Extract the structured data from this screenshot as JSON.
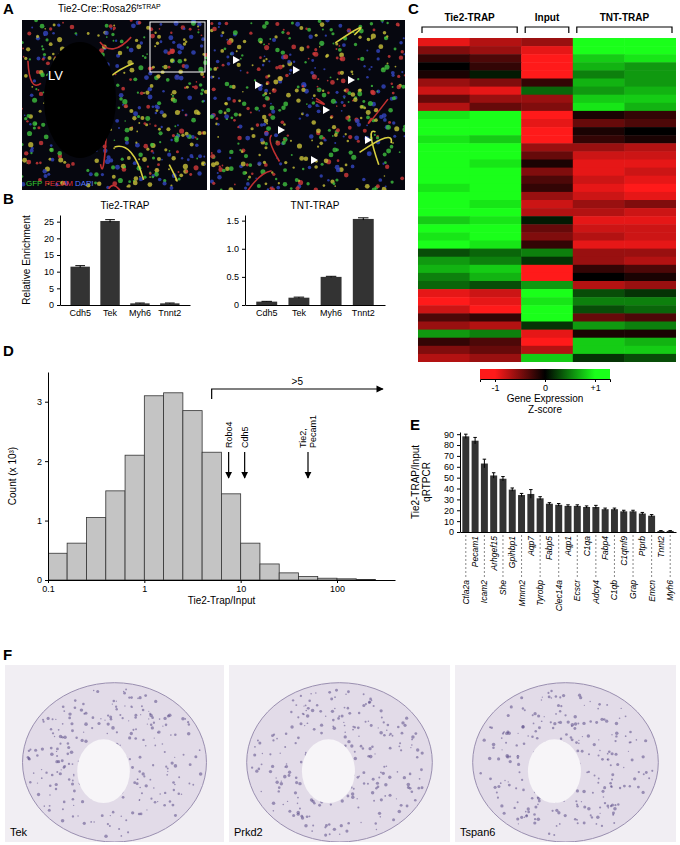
{
  "chart_data": [
    {
      "panel": "B",
      "type": "bar",
      "title": "Tie2-TRAP",
      "y_label": "Relative Enrichment",
      "categories": [
        "Cdh5",
        "Tek",
        "Myh6",
        "Tnnt2"
      ],
      "values": [
        11.5,
        25.2,
        0.5,
        0.5
      ],
      "errors": [
        0.3,
        0.4,
        0.1,
        0.1
      ],
      "ylim": [
        0,
        27
      ],
      "yticks": [
        0,
        5,
        10,
        15,
        20,
        25
      ],
      "color": "#333333"
    },
    {
      "type": "bar",
      "title": "TNT-TRAP",
      "categories": [
        "Cdh5",
        "Tek",
        "Myh6",
        "Tnnt2"
      ],
      "values": [
        0.06,
        0.13,
        0.5,
        1.53
      ],
      "errors": [
        0.005,
        0.01,
        0.01,
        0.02
      ],
      "ylim": [
        0,
        1.6
      ],
      "yticks": [
        0,
        0.5,
        {
          "value": 1,
          "label": "1.0"
        },
        1.5
      ],
      "color": "#333333"
    },
    {
      "panel": "C",
      "type": "heatmap",
      "column_groups": [
        {
          "label": "Tie2-TRAP",
          "columns": 2
        },
        {
          "label": "Input",
          "columns": 1
        },
        {
          "label": "TNT-TRAP",
          "columns": 2
        }
      ],
      "cells": [
        [
          -0.9,
          -0.7,
          -0.6,
          1.1,
          1.0
        ],
        [
          -0.5,
          -0.6,
          -0.9,
          1.0,
          1.1
        ],
        [
          -0.2,
          -0.3,
          -1.1,
          0.8,
          0.9
        ],
        [
          0.0,
          -0.2,
          -1.0,
          0.7,
          0.6
        ],
        [
          -0.1,
          0.1,
          -1.0,
          0.5,
          0.6
        ],
        [
          -0.6,
          -0.5,
          -0.2,
          0.7,
          0.6
        ],
        [
          -0.8,
          -0.9,
          0.4,
          0.6,
          0.7
        ],
        [
          -0.4,
          -0.6,
          -0.6,
          0.8,
          0.8
        ],
        [
          -0.7,
          -0.4,
          -0.5,
          0.9,
          0.7
        ],
        [
          0.9,
          1.0,
          -1.2,
          -0.1,
          -0.2
        ],
        [
          1.1,
          1.0,
          -0.9,
          -0.4,
          -0.3
        ],
        [
          1.0,
          1.1,
          -1.3,
          -0.1,
          0.0
        ],
        [
          0.9,
          0.8,
          -1.2,
          -0.2,
          -0.1
        ],
        [
          1.0,
          1.1,
          -0.6,
          -0.6,
          -0.7
        ],
        [
          1.1,
          1.0,
          -0.4,
          -0.8,
          -0.8
        ],
        [
          1.0,
          0.9,
          -0.1,
          -0.9,
          -0.9
        ],
        [
          1.2,
          1.1,
          -0.5,
          -0.9,
          -0.8
        ],
        [
          1.0,
          1.0,
          -0.3,
          -0.8,
          -0.9
        ],
        [
          0.9,
          1.1,
          -0.2,
          -0.9,
          -1.0
        ],
        [
          1.1,
          1.2,
          -0.6,
          -0.8,
          -0.9
        ],
        [
          1.0,
          0.9,
          -0.8,
          -0.6,
          -0.5
        ],
        [
          1.2,
          1.0,
          -0.7,
          -0.7,
          -0.8
        ],
        [
          0.8,
          0.9,
          0.1,
          -0.9,
          -0.9
        ],
        [
          1.0,
          1.0,
          -0.4,
          -0.8,
          -0.8
        ],
        [
          0.9,
          1.1,
          -0.5,
          -0.7,
          -0.8
        ],
        [
          1.1,
          0.9,
          -0.2,
          -0.9,
          -0.9
        ],
        [
          0.3,
          0.4,
          0.5,
          -0.6,
          -0.6
        ],
        [
          0.6,
          0.5,
          0.2,
          -0.6,
          -0.7
        ],
        [
          0.7,
          0.8,
          -1.0,
          -0.2,
          -0.3
        ],
        [
          0.5,
          0.7,
          -1.1,
          0.0,
          -0.1
        ],
        [
          0.4,
          0.3,
          0.6,
          -0.7,
          -0.6
        ],
        [
          -0.9,
          -0.8,
          1.2,
          0.3,
          0.2
        ],
        [
          -1.0,
          -0.9,
          0.9,
          0.5,
          0.5
        ],
        [
          -0.8,
          -1.0,
          1.1,
          0.3,
          0.4
        ],
        [
          -0.3,
          -0.2,
          1.2,
          -0.4,
          -0.3
        ],
        [
          -0.6,
          -0.7,
          0.2,
          0.6,
          0.5
        ],
        [
          0.6,
          0.5,
          -0.9,
          -0.1,
          -0.1
        ],
        [
          -0.2,
          -0.3,
          -1.0,
          0.8,
          0.7
        ],
        [
          -0.5,
          -0.4,
          -0.7,
          0.8,
          0.8
        ],
        [
          -0.7,
          -0.6,
          0.8,
          0.2,
          0.3
        ]
      ],
      "colors": [
        "#ff1a1a",
        "#000000",
        "#1aff1a"
      ],
      "colorbar": {
        "title": [
          "Gene Expression",
          "Z-score"
        ],
        "range": [
          -1.3,
          1.3
        ],
        "ticks": [
          -1,
          0,
          {
            "value": 1,
            "label": "+1"
          }
        ]
      }
    },
    {
      "panel": "D",
      "type": "histogram",
      "x_label": "Tie2-Trap/Input",
      "y_label": "Count (x 10³)",
      "bins": [
        0.1,
        0.158,
        0.251,
        0.398,
        0.631,
        1,
        1.585,
        2.512,
        3.981,
        6.31,
        10,
        15.85,
        25.12,
        39.81,
        63.1,
        100,
        158.5,
        251.2
      ],
      "counts": [
        0.45,
        0.62,
        1.05,
        1.5,
        2.1,
        3.1,
        3.15,
        2.85,
        2.15,
        1.45,
        0.62,
        0.27,
        0.12,
        0.06,
        0.03,
        0.02,
        0.01
      ],
      "log": "x",
      "xlim": [
        0.1,
        400
      ],
      "xticks": [
        0.1,
        1,
        10,
        100
      ],
      "ylim": [
        0,
        3.5
      ],
      "yticks": [
        0,
        1,
        2,
        3
      ],
      "color": "#c4c4c4",
      "annotations": [
        {
          "text": ">5",
          "x": 5,
          "x_end": 300
        },
        {
          "text": "Robo4",
          "x": 7.5
        },
        {
          "text": "Cdh5",
          "x": 11
        },
        {
          "text": [
            "Tie2,",
            "Pecam1"
          ],
          "x": 50
        }
      ]
    },
    {
      "panel": "E",
      "type": "bar",
      "y_label": [
        "Tie2-TRAP/Input",
        "qRTPCR"
      ],
      "categories": [
        "Ctla2a",
        "Pecam1",
        "Icam2",
        "Arhgef15",
        "She",
        "Gpihbp1",
        "Mmrn2",
        "Aqp7",
        "Tyrobp",
        "Fabp5",
        "Clec14a",
        "Aqp1",
        "Ecscr",
        "C1qa",
        "Adcy4",
        "Fabp4",
        "C1qb",
        "C1qtnf9",
        "Grap",
        "Ptprb",
        "Emcn",
        "Tnnt2",
        "Myh6"
      ],
      "values": [
        88,
        84,
        63,
        52,
        49,
        39,
        34,
        35,
        31,
        26,
        25,
        24,
        24,
        23,
        23,
        21,
        21,
        19,
        19,
        17,
        15,
        1,
        1
      ],
      "errors": [
        2,
        3,
        4,
        2.5,
        2,
        1.5,
        1.5,
        4,
        1.5,
        1,
        1.2,
        1,
        1,
        1,
        1.5,
        1,
        1,
        1,
        1,
        1,
        1,
        0.3,
        0.3
      ],
      "ylim": [
        0,
        92
      ],
      "yticks": [
        0,
        10,
        20,
        30,
        40,
        50,
        60,
        70,
        80,
        90
      ],
      "color": "#333333"
    }
  ],
  "figure": {
    "panel_a": {
      "label": "A",
      "title": "Tie2-Cre::Rosa26",
      "title_superscript": "fsTRAP",
      "image_label": "LV",
      "stain_legend": [
        "GFP",
        "PECAM",
        "DAPI"
      ]
    },
    "panel_f": {
      "label": "F",
      "images": [
        "Tek",
        "Prkd2",
        "Tspan6"
      ]
    }
  }
}
